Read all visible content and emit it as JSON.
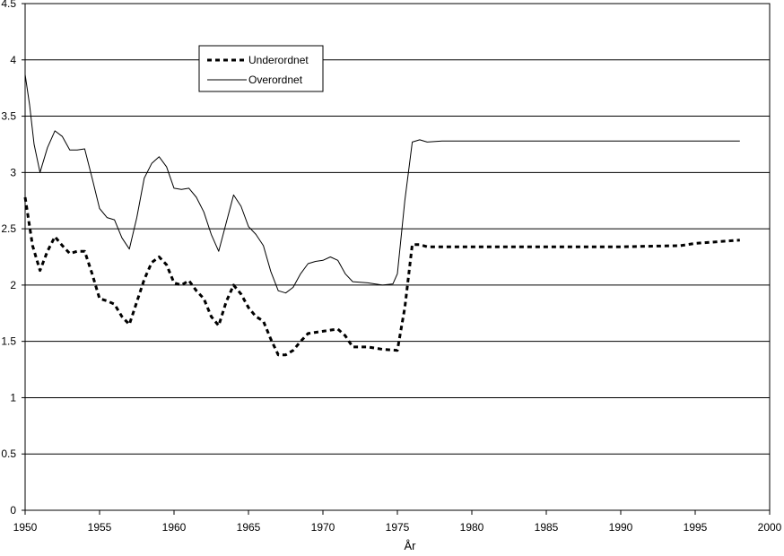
{
  "chart_data": {
    "type": "line",
    "title": "",
    "xlabel": "År",
    "ylabel": "",
    "xlim": [
      1950,
      2000
    ],
    "ylim": [
      0,
      4.5
    ],
    "x_ticks": [
      "1950",
      "1955",
      "1960",
      "1965",
      "1970",
      "1975",
      "1980",
      "1985",
      "1990",
      "1995",
      "2000"
    ],
    "y_ticks": [
      "0",
      "0.5",
      "1",
      "1.5",
      "2",
      "2.5",
      "3",
      "3.5",
      "4",
      "4.5"
    ],
    "grid": "horizontal",
    "legend_position": "top-left",
    "series": [
      {
        "name": "Underordnet",
        "style": "dashed",
        "color": "#000000",
        "points": [
          [
            1950,
            2.78
          ],
          [
            1950.5,
            2.35
          ],
          [
            1951,
            2.13
          ],
          [
            1951.5,
            2.3
          ],
          [
            1952,
            2.43
          ],
          [
            1952.5,
            2.35
          ],
          [
            1953,
            2.28
          ],
          [
            1953.5,
            2.3
          ],
          [
            1954,
            2.3
          ],
          [
            1954.5,
            2.1
          ],
          [
            1955,
            1.88
          ],
          [
            1955.5,
            1.86
          ],
          [
            1956,
            1.83
          ],
          [
            1956.5,
            1.72
          ],
          [
            1957,
            1.65
          ],
          [
            1957.5,
            1.85
          ],
          [
            1958,
            2.05
          ],
          [
            1958.5,
            2.2
          ],
          [
            1959,
            2.25
          ],
          [
            1959.5,
            2.18
          ],
          [
            1960,
            2.02
          ],
          [
            1960.5,
            2.0
          ],
          [
            1961,
            2.04
          ],
          [
            1961.5,
            1.95
          ],
          [
            1962,
            1.88
          ],
          [
            1962.5,
            1.72
          ],
          [
            1963,
            1.64
          ],
          [
            1963.5,
            1.85
          ],
          [
            1964,
            2.0
          ],
          [
            1964.5,
            1.92
          ],
          [
            1965,
            1.8
          ],
          [
            1965.5,
            1.72
          ],
          [
            1966,
            1.68
          ],
          [
            1966.5,
            1.52
          ],
          [
            1967,
            1.38
          ],
          [
            1967.5,
            1.38
          ],
          [
            1968,
            1.42
          ],
          [
            1968.5,
            1.5
          ],
          [
            1969,
            1.57
          ],
          [
            1969.5,
            1.58
          ],
          [
            1970,
            1.59
          ],
          [
            1970.5,
            1.6
          ],
          [
            1971,
            1.61
          ],
          [
            1971.5,
            1.55
          ],
          [
            1972,
            1.45
          ],
          [
            1973,
            1.45
          ],
          [
            1974,
            1.43
          ],
          [
            1975,
            1.42
          ],
          [
            1975.5,
            1.8
          ],
          [
            1976,
            2.36
          ],
          [
            1976.5,
            2.36
          ],
          [
            1977,
            2.34
          ],
          [
            1978,
            2.34
          ],
          [
            1980,
            2.34
          ],
          [
            1985,
            2.34
          ],
          [
            1990,
            2.34
          ],
          [
            1994,
            2.35
          ],
          [
            1995,
            2.37
          ],
          [
            1996,
            2.38
          ],
          [
            1998,
            2.4
          ]
        ]
      },
      {
        "name": "Overordnet",
        "style": "solid",
        "color": "#000000",
        "points": [
          [
            1950,
            3.87
          ],
          [
            1950.3,
            3.6
          ],
          [
            1950.6,
            3.25
          ],
          [
            1951,
            3.0
          ],
          [
            1951.5,
            3.22
          ],
          [
            1952,
            3.37
          ],
          [
            1952.5,
            3.32
          ],
          [
            1953,
            3.2
          ],
          [
            1953.5,
            3.2
          ],
          [
            1954,
            3.21
          ],
          [
            1954.5,
            2.95
          ],
          [
            1955,
            2.68
          ],
          [
            1955.5,
            2.6
          ],
          [
            1956,
            2.58
          ],
          [
            1956.5,
            2.42
          ],
          [
            1957,
            2.32
          ],
          [
            1957.5,
            2.6
          ],
          [
            1958,
            2.95
          ],
          [
            1958.5,
            3.08
          ],
          [
            1959,
            3.14
          ],
          [
            1959.5,
            3.05
          ],
          [
            1960,
            2.86
          ],
          [
            1960.5,
            2.85
          ],
          [
            1961,
            2.86
          ],
          [
            1961.5,
            2.78
          ],
          [
            1962,
            2.65
          ],
          [
            1962.5,
            2.45
          ],
          [
            1963,
            2.3
          ],
          [
            1963.5,
            2.55
          ],
          [
            1964,
            2.8
          ],
          [
            1964.5,
            2.7
          ],
          [
            1965,
            2.52
          ],
          [
            1965.5,
            2.45
          ],
          [
            1966,
            2.35
          ],
          [
            1966.5,
            2.12
          ],
          [
            1967,
            1.95
          ],
          [
            1967.5,
            1.93
          ],
          [
            1968,
            1.98
          ],
          [
            1968.5,
            2.1
          ],
          [
            1969,
            2.19
          ],
          [
            1969.5,
            2.21
          ],
          [
            1970,
            2.22
          ],
          [
            1970.5,
            2.25
          ],
          [
            1971,
            2.22
          ],
          [
            1971.5,
            2.1
          ],
          [
            1972,
            2.03
          ],
          [
            1973,
            2.02
          ],
          [
            1974,
            2.0
          ],
          [
            1974.7,
            2.01
          ],
          [
            1975,
            2.1
          ],
          [
            1975.5,
            2.75
          ],
          [
            1976,
            3.27
          ],
          [
            1976.5,
            3.29
          ],
          [
            1977,
            3.27
          ],
          [
            1978,
            3.28
          ],
          [
            1980,
            3.28
          ],
          [
            1985,
            3.28
          ],
          [
            1990,
            3.28
          ],
          [
            1995,
            3.28
          ],
          [
            1998,
            3.28
          ]
        ]
      }
    ]
  }
}
